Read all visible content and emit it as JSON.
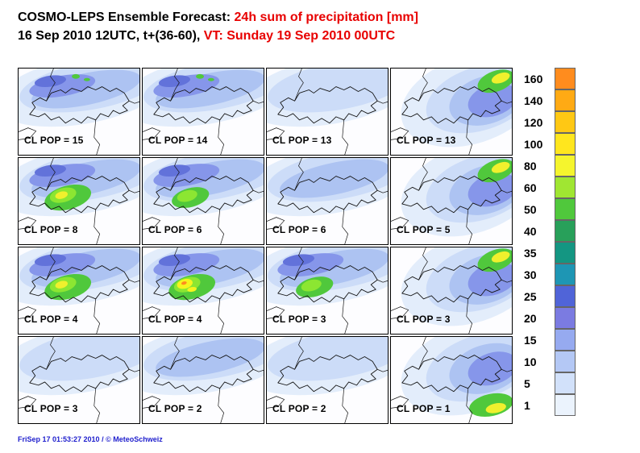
{
  "header": {
    "line1_black": "COSMO-LEPS Ensemble Forecast: ",
    "line1_red": "24h sum of precipitation [mm]",
    "line2_black": "16 Sep 2010 12UTC, t+(36-60), ",
    "line2_red": "VT: Sunday 19 Sep 2010 00UTC"
  },
  "colors": {
    "title_accent": "#e80000",
    "footer_blue": "#1e1ecd",
    "map_border": "#000000"
  },
  "maps": [
    {
      "label": "CL POP = 15",
      "pattern": "blue-heavy"
    },
    {
      "label": "CL POP = 14",
      "pattern": "blue-heavy"
    },
    {
      "label": "CL POP = 13",
      "pattern": "light"
    },
    {
      "label": "CL POP = 13",
      "pattern": "ne-heavy"
    },
    {
      "label": "CL POP = 8",
      "pattern": "core-bright"
    },
    {
      "label": "CL POP = 6",
      "pattern": "core-green"
    },
    {
      "label": "CL POP = 6",
      "pattern": "band"
    },
    {
      "label": "CL POP = 5",
      "pattern": "ne-heavy"
    },
    {
      "label": "CL POP = 4",
      "pattern": "core-bright"
    },
    {
      "label": "CL POP = 4",
      "pattern": "core-brightest"
    },
    {
      "label": "CL POP = 3",
      "pattern": "core-green"
    },
    {
      "label": "CL POP = 3",
      "pattern": "ne-heavy"
    },
    {
      "label": "CL POP = 3",
      "pattern": "light"
    },
    {
      "label": "CL POP = 2",
      "pattern": "band"
    },
    {
      "label": "CL POP = 2",
      "pattern": "light"
    },
    {
      "label": "CL POP = 1",
      "pattern": "se-heavy"
    }
  ],
  "legend": {
    "unit": "mm",
    "values": [
      "160",
      "140",
      "120",
      "100",
      "80",
      "60",
      "50",
      "40",
      "35",
      "30",
      "25",
      "20",
      "15",
      "10",
      "5",
      "1"
    ],
    "colors": [
      "#ff8c1e",
      "#ffaa14",
      "#ffc814",
      "#ffe61e",
      "#f5f52d",
      "#a0e632",
      "#50c83c",
      "#28a05a",
      "#149682",
      "#1e96b4",
      "#5064d8",
      "#7b7be1",
      "#96aaf0",
      "#b4c8f5",
      "#d2e1fa",
      "#ebf3fd"
    ]
  },
  "footer": "FriSep 17 01:53:27 2010 / © MeteoSchweiz"
}
